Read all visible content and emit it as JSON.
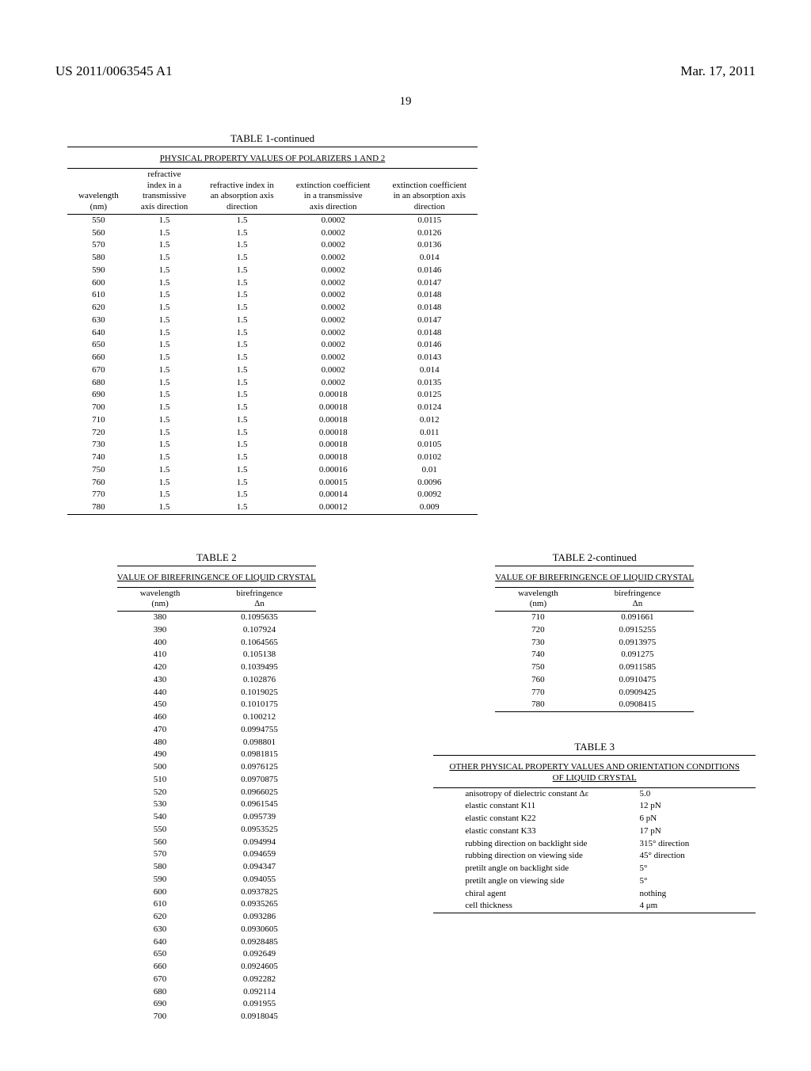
{
  "header": {
    "pub_number": "US 2011/0063545 A1",
    "pub_date": "Mar. 17, 2011",
    "page_label": "19"
  },
  "table1": {
    "title": "TABLE 1-continued",
    "subtitle": "PHYSICAL PROPERTY VALUES OF POLARIZERS 1 AND 2",
    "columns": [
      "wavelength\n(nm)",
      "refractive\nindex in a\ntransmissive\naxis direction",
      "refractive index in\nan absorption axis\ndirection",
      "extinction coefficient\nin a transmissive\naxis direction",
      "extinction coefficient\nin an absorption axis\ndirection"
    ],
    "rows": [
      [
        "550",
        "1.5",
        "1.5",
        "0.0002",
        "0.0115"
      ],
      [
        "560",
        "1.5",
        "1.5",
        "0.0002",
        "0.0126"
      ],
      [
        "570",
        "1.5",
        "1.5",
        "0.0002",
        "0.0136"
      ],
      [
        "580",
        "1.5",
        "1.5",
        "0.0002",
        "0.014"
      ],
      [
        "590",
        "1.5",
        "1.5",
        "0.0002",
        "0.0146"
      ],
      [
        "600",
        "1.5",
        "1.5",
        "0.0002",
        "0.0147"
      ],
      [
        "610",
        "1.5",
        "1.5",
        "0.0002",
        "0.0148"
      ],
      [
        "620",
        "1.5",
        "1.5",
        "0.0002",
        "0.0148"
      ],
      [
        "630",
        "1.5",
        "1.5",
        "0.0002",
        "0.0147"
      ],
      [
        "640",
        "1.5",
        "1.5",
        "0.0002",
        "0.0148"
      ],
      [
        "650",
        "1.5",
        "1.5",
        "0.0002",
        "0.0146"
      ],
      [
        "660",
        "1.5",
        "1.5",
        "0.0002",
        "0.0143"
      ],
      [
        "670",
        "1.5",
        "1.5",
        "0.0002",
        "0.014"
      ],
      [
        "680",
        "1.5",
        "1.5",
        "0.0002",
        "0.0135"
      ],
      [
        "690",
        "1.5",
        "1.5",
        "0.00018",
        "0.0125"
      ],
      [
        "700",
        "1.5",
        "1.5",
        "0.00018",
        "0.0124"
      ],
      [
        "710",
        "1.5",
        "1.5",
        "0.00018",
        "0.012"
      ],
      [
        "720",
        "1.5",
        "1.5",
        "0.00018",
        "0.011"
      ],
      [
        "730",
        "1.5",
        "1.5",
        "0.00018",
        "0.0105"
      ],
      [
        "740",
        "1.5",
        "1.5",
        "0.00018",
        "0.0102"
      ],
      [
        "750",
        "1.5",
        "1.5",
        "0.00016",
        "0.01"
      ],
      [
        "760",
        "1.5",
        "1.5",
        "0.00015",
        "0.0096"
      ],
      [
        "770",
        "1.5",
        "1.5",
        "0.00014",
        "0.0092"
      ],
      [
        "780",
        "1.5",
        "1.5",
        "0.00012",
        "0.009"
      ]
    ]
  },
  "table2": {
    "title": "TABLE 2",
    "title_cont": "TABLE 2-continued",
    "subtitle": "VALUE OF BIREFRINGENCE OF LIQUID CRYSTAL",
    "columns": [
      "wavelength\n(nm)",
      "birefringence\nΔn"
    ],
    "rows_left": [
      [
        "380",
        "0.1095635"
      ],
      [
        "390",
        "0.107924"
      ],
      [
        "400",
        "0.1064565"
      ],
      [
        "410",
        "0.105138"
      ],
      [
        "420",
        "0.1039495"
      ],
      [
        "430",
        "0.102876"
      ],
      [
        "440",
        "0.1019025"
      ],
      [
        "450",
        "0.1010175"
      ],
      [
        "460",
        "0.100212"
      ],
      [
        "470",
        "0.0994755"
      ],
      [
        "480",
        "0.098801"
      ],
      [
        "490",
        "0.0981815"
      ],
      [
        "500",
        "0.0976125"
      ],
      [
        "510",
        "0.0970875"
      ],
      [
        "520",
        "0.0966025"
      ],
      [
        "530",
        "0.0961545"
      ],
      [
        "540",
        "0.095739"
      ],
      [
        "550",
        "0.0953525"
      ],
      [
        "560",
        "0.094994"
      ],
      [
        "570",
        "0.094659"
      ],
      [
        "580",
        "0.094347"
      ],
      [
        "590",
        "0.094055"
      ],
      [
        "600",
        "0.0937825"
      ],
      [
        "610",
        "0.0935265"
      ],
      [
        "620",
        "0.093286"
      ],
      [
        "630",
        "0.0930605"
      ],
      [
        "640",
        "0.0928485"
      ],
      [
        "650",
        "0.092649"
      ],
      [
        "660",
        "0.0924605"
      ],
      [
        "670",
        "0.092282"
      ],
      [
        "680",
        "0.092114"
      ],
      [
        "690",
        "0.091955"
      ],
      [
        "700",
        "0.0918045"
      ]
    ],
    "rows_right": [
      [
        "710",
        "0.091661"
      ],
      [
        "720",
        "0.0915255"
      ],
      [
        "730",
        "0.0913975"
      ],
      [
        "740",
        "0.091275"
      ],
      [
        "750",
        "0.0911585"
      ],
      [
        "760",
        "0.0910475"
      ],
      [
        "770",
        "0.0909425"
      ],
      [
        "780",
        "0.0908415"
      ]
    ]
  },
  "table3": {
    "title": "TABLE 3",
    "subtitle": "OTHER PHYSICAL PROPERTY VALUES AND ORIENTATION CONDITIONS OF LIQUID CRYSTAL",
    "rows": [
      [
        "anisotropy of dielectric constant Δε",
        "5.0"
      ],
      [
        "elastic constant K11",
        "12 pN"
      ],
      [
        "elastic constant K22",
        "6 pN"
      ],
      [
        "elastic constant K33",
        "17 pN"
      ],
      [
        "rubbing direction on backlight side",
        "315° direction"
      ],
      [
        "rubbing direction on viewing side",
        "45° direction"
      ],
      [
        "pretilt angle on backlight side",
        "5°"
      ],
      [
        "pretilt angle on viewing side",
        "5°"
      ],
      [
        "chiral agent",
        "nothing"
      ],
      [
        "cell thickness",
        "4 μm"
      ]
    ]
  }
}
